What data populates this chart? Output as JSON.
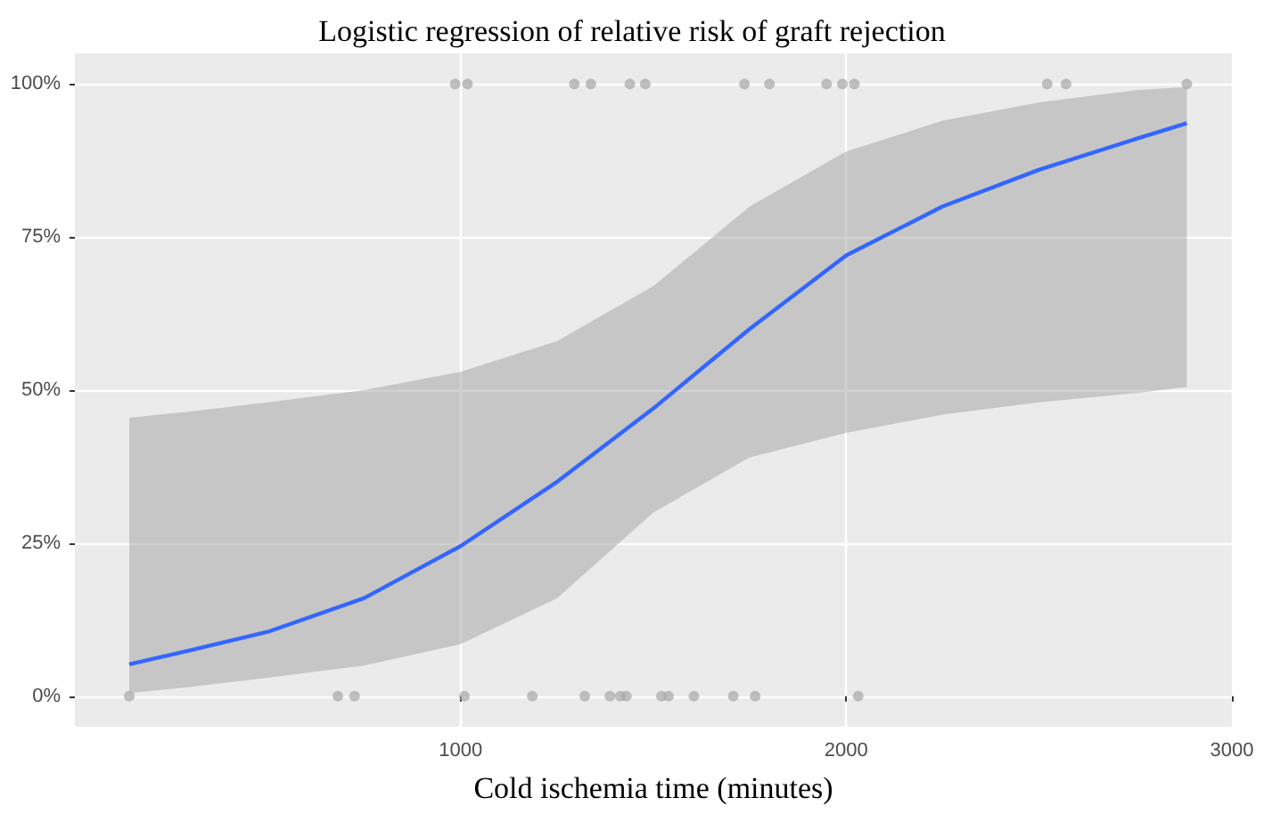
{
  "chart_data": {
    "type": "line",
    "title": "Logistic regression of relative risk of graft rejection",
    "xlabel": "Cold ischemia time (minutes)",
    "xlim": [
      0,
      3000
    ],
    "xticks": [
      1000,
      2000,
      3000
    ],
    "ylim": [
      -5,
      105
    ],
    "yticks": [
      {
        "value": 0,
        "label": "0%"
      },
      {
        "value": 25,
        "label": "25%"
      },
      {
        "value": 50,
        "label": "50%"
      },
      {
        "value": 75,
        "label": "75%"
      },
      {
        "value": 100,
        "label": "100%"
      }
    ],
    "grid": true,
    "series": [
      {
        "color": "#3366ff",
        "marker": "none",
        "x": [
          141,
          300,
          500,
          750,
          1000,
          1250,
          1500,
          1750,
          2000,
          2250,
          2500,
          2750,
          2883
        ],
        "values": [
          5.2,
          7.5,
          10.5,
          16,
          24.5,
          35,
          47,
          60,
          72,
          80,
          86,
          91,
          93.6
        ],
        "lower": [
          0.5,
          1.5,
          3,
          5,
          8.5,
          16,
          30,
          39,
          43,
          46,
          48,
          49.5,
          50.5
        ],
        "upper": [
          45.5,
          46.5,
          48,
          50,
          53,
          58,
          67,
          80,
          89,
          94,
          97,
          99,
          99.5
        ]
      },
      {
        "type": "scatter",
        "color": "#a6a6a6",
        "marker": "circle",
        "x": [
          986,
          1018,
          1295,
          1338,
          1439,
          1479,
          1736,
          1801,
          1949,
          1990,
          2021,
          2521,
          2570,
          2883,
          141,
          682,
          725,
          1010,
          1186,
          1322,
          1387,
          1414,
          1430,
          1521,
          1539,
          1605,
          1707,
          1764,
          2031
        ],
        "values": [
          100,
          100,
          100,
          100,
          100,
          100,
          100,
          100,
          100,
          100,
          100,
          100,
          100,
          100,
          0,
          0,
          0,
          0,
          0,
          0,
          0,
          0,
          0,
          0,
          0,
          0,
          0,
          0,
          0
        ]
      }
    ]
  }
}
